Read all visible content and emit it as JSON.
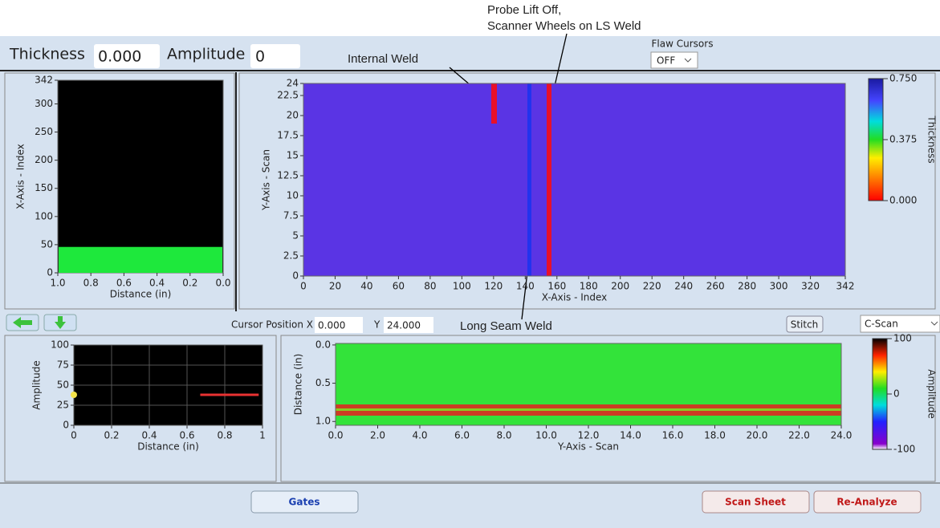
{
  "header": {
    "thickness_label": "Thickness",
    "thickness_value": "0.000",
    "amplitude_label": "Amplitude",
    "amplitude_value": "0",
    "flaw_cursors_label": "Flaw Cursors",
    "flaw_cursors_value": "OFF"
  },
  "annotations": {
    "probe_lift_off": "Probe Lift Off,",
    "scanner_wheels": "Scanner Wheels on LS Weld",
    "internal_weld": "Internal Weld",
    "long_seam_weld": "Long Seam Weld"
  },
  "plots": [
    {
      "xlabel": "Distance (in)",
      "ylabel": "X-Axis - Index",
      "xlim": [
        1,
        0
      ],
      "ylim": [
        0,
        342
      ],
      "xticks": [
        {
          "value": 1,
          "label": "1.0"
        },
        {
          "value": 0.8,
          "label": "0.8"
        },
        {
          "value": 0.6,
          "label": "0.6"
        },
        {
          "value": 0.4,
          "label": "0.4"
        },
        {
          "value": 0.2,
          "label": "0.2"
        },
        {
          "value": 0,
          "label": "0.0"
        }
      ],
      "yticks": [
        0,
        50,
        100,
        150,
        200,
        250,
        300,
        342
      ],
      "fill_value": 46,
      "grid": false
    },
    {
      "xlabel": "X-Axis - Index",
      "ylabel": "Y-Axis - Scan",
      "xlim": [
        0,
        342
      ],
      "ylim": [
        0,
        24
      ],
      "xticks": [
        0,
        20,
        40,
        60,
        80,
        100,
        120,
        140,
        160,
        180,
        200,
        220,
        240,
        260,
        280,
        300,
        320,
        342
      ],
      "yticks": [
        0,
        2.5,
        5,
        7.5,
        10,
        12.5,
        15,
        17.5,
        20,
        22.5,
        24
      ],
      "grid": false
    },
    {
      "xlabel": "Distance (in)",
      "ylabel": "Amplitude",
      "xlim": [
        0,
        1
      ],
      "ylim": [
        0,
        100
      ],
      "xticks": [
        0,
        0.2,
        0.4,
        0.6,
        0.8,
        1
      ],
      "yticks": [
        0,
        25,
        50,
        75,
        100
      ],
      "grid": true,
      "line": {
        "x": [
          0.67,
          0.98
        ],
        "y": [
          38,
          38
        ]
      },
      "point": {
        "x": 0,
        "y": 38
      }
    },
    {
      "xlabel": "Y-Axis - Scan",
      "ylabel": "Distance (in)",
      "xlim": [
        0,
        24
      ],
      "ylim": [
        1.05,
        -0.02
      ],
      "xticks": [
        {
          "value": 0,
          "label": "0.0"
        },
        {
          "value": 2,
          "label": "2.0"
        },
        {
          "value": 4,
          "label": "4.0"
        },
        {
          "value": 6,
          "label": "6.0"
        },
        {
          "value": 8,
          "label": "8.0"
        },
        {
          "value": 10,
          "label": "10.0"
        },
        {
          "value": 12,
          "label": "12.0"
        },
        {
          "value": 14,
          "label": "14.0"
        },
        {
          "value": 16,
          "label": "16.0"
        },
        {
          "value": 18,
          "label": "18.0"
        },
        {
          "value": 20,
          "label": "20.0"
        },
        {
          "value": 22,
          "label": "22.0"
        },
        {
          "value": 24,
          "label": "24.0"
        }
      ],
      "yticks": [
        {
          "value": 0,
          "label": "0.0"
        },
        {
          "value": 0.5,
          "label": "0.5"
        },
        {
          "value": 1,
          "label": "1.0"
        }
      ],
      "grid": false
    }
  ],
  "colorbars": [
    {
      "label": "Thickness",
      "lim": [
        0,
        0.75
      ],
      "ticks": [
        {
          "value": 0.75,
          "label": "0.750"
        },
        {
          "value": 0.375,
          "label": "0.375"
        },
        {
          "value": 0,
          "label": "0.000"
        }
      ]
    },
    {
      "label": "Amplitude",
      "lim": [
        -100,
        100
      ],
      "ticks": [
        100,
        0,
        -100
      ]
    }
  ],
  "controls": {
    "cursor_position_label": "Cursor Position X",
    "cursor_x": "0.000",
    "cursor_y_label": "Y",
    "cursor_y": "24.000",
    "stitch": "Stitch",
    "view_mode": "C-Scan",
    "gates": "Gates",
    "scan_sheet": "Scan Sheet",
    "re_analyze": "Re-Analyze"
  }
}
